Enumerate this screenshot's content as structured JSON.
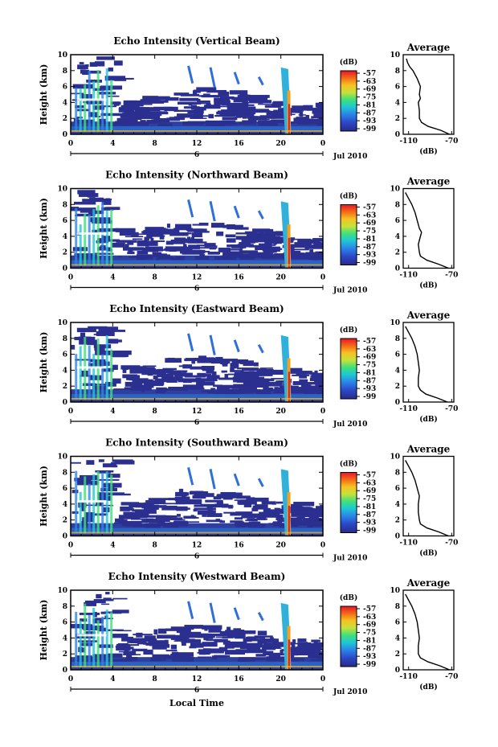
{
  "figure": {
    "xlabel": "Local Time",
    "date_label": "Jul 2010",
    "day_label": "6",
    "height_label": "Height (km)",
    "colorbar_unit": "(dB)",
    "avg_title": "Average",
    "avg_xlabel": "(dB)"
  },
  "chart_data": [
    {
      "type": "heatmap",
      "title": "Echo Intensity (Vertical Beam)",
      "ylabel": "Height (km)",
      "x_ticks": [
        "0",
        "4",
        "8",
        "12",
        "16",
        "20",
        "0"
      ],
      "y_ticks": [
        "0",
        "2",
        "4",
        "6",
        "8",
        "10"
      ],
      "xlim": [
        0,
        24
      ],
      "ylim": [
        0,
        10
      ],
      "colorbar": {
        "label": "(dB)",
        "ticks": [
          "-57",
          "-63",
          "-69",
          "-75",
          "-81",
          "-87",
          "-93",
          "-99"
        ]
      },
      "average_profile": {
        "title": "Average",
        "xlabel": "(dB)",
        "x_ticks": [
          "-110",
          "-70"
        ],
        "xlim": [
          -115,
          -68
        ],
        "y_ticks": [
          "0",
          "2",
          "4",
          "6",
          "8",
          "10"
        ],
        "heights": [
          0,
          0.5,
          1,
          1.5,
          2,
          3,
          4,
          4.5,
          5,
          6,
          7,
          8,
          8.5,
          9,
          9.5
        ],
        "values": [
          -72,
          -80,
          -92,
          -98,
          -100,
          -100,
          -101,
          -99,
          -100,
          -99,
          -102,
          -106,
          -109,
          -111,
          -112
        ]
      }
    },
    {
      "type": "heatmap",
      "title": "Echo Intensity (Northward Beam)",
      "ylabel": "Height (km)",
      "x_ticks": [
        "0",
        "4",
        "8",
        "12",
        "16",
        "20",
        "0"
      ],
      "y_ticks": [
        "0",
        "2",
        "4",
        "6",
        "8",
        "10"
      ],
      "xlim": [
        0,
        24
      ],
      "ylim": [
        0,
        10
      ],
      "colorbar": {
        "label": "(dB)",
        "ticks": [
          "-57",
          "-63",
          "-69",
          "-75",
          "-81",
          "-87",
          "-93",
          "-99"
        ]
      },
      "average_profile": {
        "title": "Average",
        "xlabel": "(dB)",
        "x_ticks": [
          "-110",
          "-70"
        ],
        "xlim": [
          -115,
          -68
        ],
        "y_ticks": [
          "0",
          "2",
          "4",
          "6",
          "8",
          "10"
        ],
        "heights": [
          0,
          0.5,
          1,
          1.5,
          2,
          3,
          4,
          4.5,
          5,
          6,
          7,
          8,
          9,
          9.5
        ],
        "values": [
          -73,
          -82,
          -93,
          -99,
          -100,
          -101,
          -99,
          -98,
          -100,
          -102,
          -104,
          -107,
          -111,
          -113
        ]
      }
    },
    {
      "type": "heatmap",
      "title": "Echo Intensity (Eastward Beam)",
      "ylabel": "Height (km)",
      "x_ticks": [
        "0",
        "4",
        "8",
        "12",
        "16",
        "20",
        "0"
      ],
      "y_ticks": [
        "0",
        "2",
        "4",
        "6",
        "8",
        "10"
      ],
      "xlim": [
        0,
        24
      ],
      "ylim": [
        0,
        10
      ],
      "colorbar": {
        "label": "(dB)",
        "ticks": [
          "-57",
          "-63",
          "-69",
          "-75",
          "-81",
          "-87",
          "-93",
          "-99"
        ]
      },
      "average_profile": {
        "title": "Average",
        "xlabel": "(dB)",
        "x_ticks": [
          "-110",
          "-70"
        ],
        "xlim": [
          -115,
          -68
        ],
        "y_ticks": [
          "0",
          "2",
          "4",
          "6",
          "8",
          "10"
        ],
        "heights": [
          0,
          0.5,
          1,
          1.5,
          2,
          3,
          4,
          5,
          6,
          7,
          8,
          9,
          9.5
        ],
        "values": [
          -74,
          -83,
          -94,
          -99,
          -101,
          -101,
          -100,
          -101,
          -102,
          -104,
          -107,
          -111,
          -113
        ]
      }
    },
    {
      "type": "heatmap",
      "title": "Echo Intensity (Southward Beam)",
      "ylabel": "Height (km)",
      "x_ticks": [
        "0",
        "4",
        "8",
        "12",
        "16",
        "20",
        "0"
      ],
      "y_ticks": [
        "0",
        "2",
        "4",
        "6",
        "8",
        "10"
      ],
      "xlim": [
        0,
        24
      ],
      "ylim": [
        0,
        10
      ],
      "colorbar": {
        "label": "(dB)",
        "ticks": [
          "-57",
          "-63",
          "-69",
          "-75",
          "-81",
          "-87",
          "-93",
          "-99"
        ]
      },
      "average_profile": {
        "title": "Average",
        "xlabel": "(dB)",
        "x_ticks": [
          "-110",
          "-70"
        ],
        "xlim": [
          -115,
          -68
        ],
        "y_ticks": [
          "0",
          "2",
          "4",
          "6",
          "8",
          "10"
        ],
        "heights": [
          0,
          0.5,
          1,
          1.5,
          2,
          3,
          4,
          5,
          6,
          7,
          8,
          9,
          9.5
        ],
        "values": [
          -73,
          -82,
          -93,
          -99,
          -100,
          -101,
          -101,
          -100,
          -102,
          -104,
          -107,
          -111,
          -113
        ]
      }
    },
    {
      "type": "heatmap",
      "title": "Echo Intensity (Westward Beam)",
      "ylabel": "Height (km)",
      "x_ticks": [
        "0",
        "4",
        "8",
        "12",
        "16",
        "20",
        "0"
      ],
      "y_ticks": [
        "0",
        "2",
        "4",
        "6",
        "8",
        "10"
      ],
      "xlim": [
        0,
        24
      ],
      "ylim": [
        0,
        10
      ],
      "colorbar": {
        "label": "(dB)",
        "ticks": [
          "-57",
          "-63",
          "-69",
          "-75",
          "-81",
          "-87",
          "-93",
          "-99"
        ]
      },
      "average_profile": {
        "title": "Average",
        "xlabel": "(dB)",
        "x_ticks": [
          "-110",
          "-70"
        ],
        "xlim": [
          -115,
          -68
        ],
        "y_ticks": [
          "0",
          "2",
          "4",
          "6",
          "8",
          "10"
        ],
        "heights": [
          0,
          0.5,
          1,
          1.5,
          2,
          3,
          4,
          5,
          6,
          7,
          8,
          8.5,
          9,
          9.5
        ],
        "values": [
          -72,
          -81,
          -92,
          -99,
          -101,
          -101,
          -100,
          -101,
          -102,
          -104,
          -107,
          -109,
          -111,
          -113
        ]
      }
    }
  ]
}
